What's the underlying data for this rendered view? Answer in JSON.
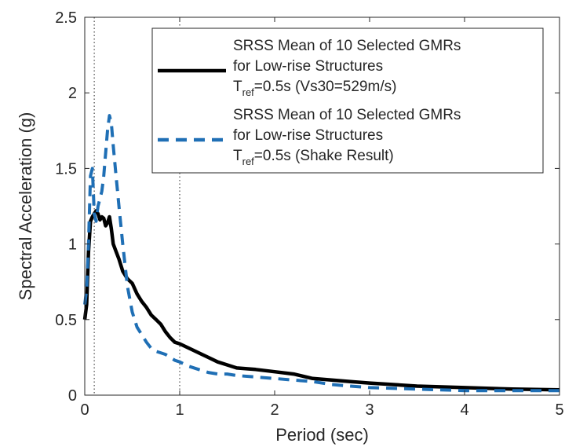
{
  "chart_data": {
    "type": "line",
    "xlabel": "Period (sec)",
    "ylabel": "Spectral Acceleration (g)",
    "xlim": [
      0,
      5
    ],
    "ylim": [
      0,
      2.5
    ],
    "x_ticks": [
      0,
      1,
      2,
      3,
      4,
      5
    ],
    "y_ticks": [
      0,
      0.5,
      1,
      1.5,
      2,
      2.5
    ],
    "x_tick_labels": [
      "0",
      "1",
      "2",
      "3",
      "4",
      "5"
    ],
    "y_tick_labels": [
      "0",
      "0.5",
      "1",
      "1.5",
      "2",
      "2.5"
    ],
    "reference_lines_x": [
      0.1,
      1.0
    ],
    "grid": false,
    "legend_position": "top-right",
    "legend": [
      {
        "line1": "SRSS Mean of 10 Selected GMRs",
        "line2": "for Low-rise Structures",
        "line3_main": "T",
        "line3_sub": "ref",
        "line3_rest": "=0.5s (Vs30=529m/s)"
      },
      {
        "line1": "SRSS Mean of 10 Selected GMRs",
        "line2": "for Low-rise Structures",
        "line3_main": "T",
        "line3_sub": "ref",
        "line3_rest": "=0.5s (Shake Result)"
      }
    ],
    "series": [
      {
        "color": "#000000",
        "dash": "solid",
        "x": [
          0,
          0.02,
          0.04,
          0.06,
          0.08,
          0.1,
          0.12,
          0.14,
          0.16,
          0.18,
          0.2,
          0.22,
          0.24,
          0.26,
          0.28,
          0.3,
          0.33,
          0.36,
          0.4,
          0.45,
          0.5,
          0.55,
          0.6,
          0.65,
          0.7,
          0.75,
          0.8,
          0.85,
          0.9,
          0.95,
          1.0,
          1.1,
          1.2,
          1.3,
          1.4,
          1.5,
          1.6,
          1.8,
          2.0,
          2.2,
          2.4,
          2.6,
          2.8,
          3.0,
          3.5,
          4.0,
          4.5,
          5.0
        ],
        "y": [
          0.5,
          0.6,
          0.95,
          1.15,
          1.18,
          1.2,
          1.22,
          1.2,
          1.16,
          1.18,
          1.17,
          1.12,
          1.14,
          1.18,
          1.1,
          1.0,
          0.95,
          0.9,
          0.82,
          0.77,
          0.74,
          0.67,
          0.62,
          0.58,
          0.53,
          0.5,
          0.47,
          0.42,
          0.38,
          0.35,
          0.34,
          0.31,
          0.28,
          0.25,
          0.22,
          0.2,
          0.18,
          0.17,
          0.155,
          0.14,
          0.11,
          0.1,
          0.09,
          0.08,
          0.06,
          0.05,
          0.04,
          0.035
        ]
      },
      {
        "color": "#1f6fb5",
        "dash": "dashed",
        "x": [
          0,
          0.02,
          0.04,
          0.06,
          0.08,
          0.1,
          0.12,
          0.14,
          0.16,
          0.18,
          0.2,
          0.22,
          0.24,
          0.26,
          0.28,
          0.3,
          0.33,
          0.36,
          0.4,
          0.45,
          0.5,
          0.55,
          0.6,
          0.65,
          0.7,
          0.75,
          0.8,
          0.85,
          0.9,
          0.95,
          1.0,
          1.1,
          1.2,
          1.3,
          1.4,
          1.5,
          1.6,
          1.8,
          2.0,
          2.2,
          2.4,
          2.6,
          2.8,
          3.0,
          3.5,
          4.0,
          4.5,
          5.0
        ],
        "y": [
          0.6,
          0.7,
          1.0,
          1.45,
          1.5,
          1.2,
          1.15,
          1.25,
          1.3,
          1.35,
          1.45,
          1.6,
          1.75,
          1.85,
          1.8,
          1.65,
          1.45,
          1.25,
          1.0,
          0.72,
          0.55,
          0.45,
          0.4,
          0.35,
          0.31,
          0.29,
          0.28,
          0.27,
          0.25,
          0.23,
          0.22,
          0.19,
          0.17,
          0.15,
          0.14,
          0.14,
          0.13,
          0.12,
          0.11,
          0.1,
          0.09,
          0.07,
          0.06,
          0.05,
          0.04,
          0.03,
          0.03,
          0.03
        ]
      }
    ]
  }
}
